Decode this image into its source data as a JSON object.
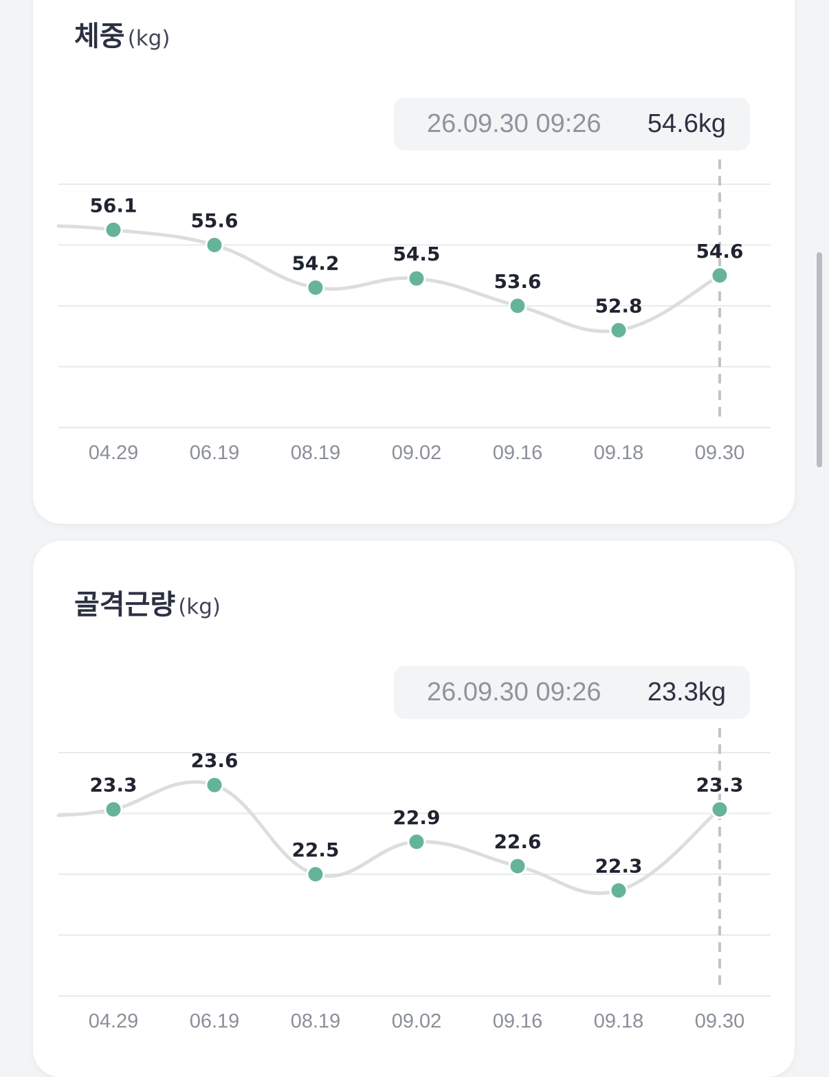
{
  "charts": {
    "weight": {
      "title": "체중",
      "unit": "(kg)",
      "tooltip": {
        "time": "26.09.30 09:26",
        "value": "54.6kg"
      }
    },
    "muscle": {
      "title": "골격근량",
      "unit": "(kg)",
      "tooltip": {
        "time": "26.09.30 09:26",
        "value": "23.3kg"
      }
    }
  },
  "colors": {
    "point": "#66b497",
    "line": "#dcdde1",
    "grid": "#e8e9ec",
    "label": "#1f2430",
    "tick": "#8a8f99",
    "guide": "#c2c4c9"
  },
  "chart_data": [
    {
      "type": "line",
      "categories": [
        "04.29",
        "06.19",
        "08.19",
        "09.02",
        "09.16",
        "09.18",
        "09.30"
      ],
      "series": [
        {
          "values": [
            56.1,
            55.6,
            54.2,
            54.5,
            53.6,
            52.8,
            54.6
          ]
        }
      ],
      "data_labels": [
        "56.1",
        "55.6",
        "54.2",
        "54.5",
        "53.6",
        "52.8",
        "54.6"
      ],
      "selected_index": 6,
      "ylim": [
        49.6,
        57.6
      ],
      "grid": true,
      "title": "체중",
      "ylabel": "(kg)"
    },
    {
      "type": "line",
      "categories": [
        "04.29",
        "06.19",
        "08.19",
        "09.02",
        "09.16",
        "09.18",
        "09.30"
      ],
      "series": [
        {
          "values": [
            23.3,
            23.6,
            22.5,
            22.9,
            22.6,
            22.3,
            23.3
          ]
        }
      ],
      "data_labels": [
        "23.3",
        "23.6",
        "22.5",
        "22.9",
        "22.6",
        "22.3",
        "23.3"
      ],
      "selected_index": 6,
      "ylim": [
        21.0,
        24.0
      ],
      "grid": true,
      "title": "골격근량",
      "ylabel": "(kg)"
    }
  ]
}
